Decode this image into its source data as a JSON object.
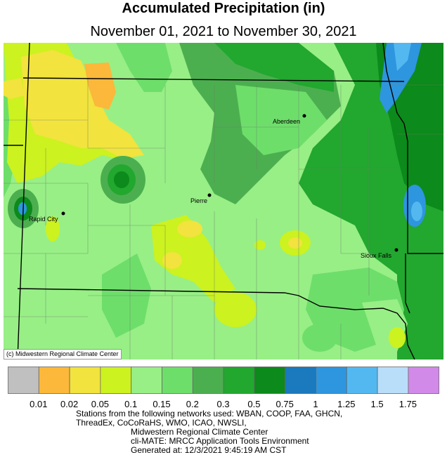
{
  "title": "Accumulated Precipitation (in)",
  "subtitle": "November 01, 2021 to November 30, 2021",
  "credit": "(c) Midwestern Regional Climate Center",
  "cities": [
    {
      "name": "Aberdeen",
      "mark": "city-marker-aberdeen"
    },
    {
      "name": "Pierre",
      "mark": "city-marker-pierre"
    },
    {
      "name": "Rapid City",
      "mark": "city-marker-rapid-city"
    },
    {
      "name": "Sioux Falls",
      "mark": "city-marker-sioux-falls"
    }
  ],
  "legend": {
    "colors": [
      "#c0c0c0",
      "#fbb83a",
      "#f2e33e",
      "#ccf21f",
      "#98ef86",
      "#6ede6b",
      "#4caf4f",
      "#22a72f",
      "#0c8a1b",
      "#1b79bd",
      "#2d96de",
      "#54b8f0",
      "#b9defa",
      "#d18ae8"
    ],
    "labels": [
      "0.01",
      "0.02",
      "0.05",
      "0.1",
      "0.15",
      "0.2",
      "0.3",
      "0.5",
      "0.75",
      "1",
      "1.25",
      "1.5",
      "1.75"
    ]
  },
  "footer": {
    "line1": "Stations from the following networks used: WBAN, COOP, FAA, GHCN,",
    "line2": "ThreadEx, CoCoRaHS, WMO, ICAO, NWSLI,",
    "line3": "Midwestern Regional Climate Center",
    "line4": "cli-MATE: MRCC Application Tools Environment",
    "line5": "Generated at: 12/3/2021 9:45:19 AM CST"
  }
}
